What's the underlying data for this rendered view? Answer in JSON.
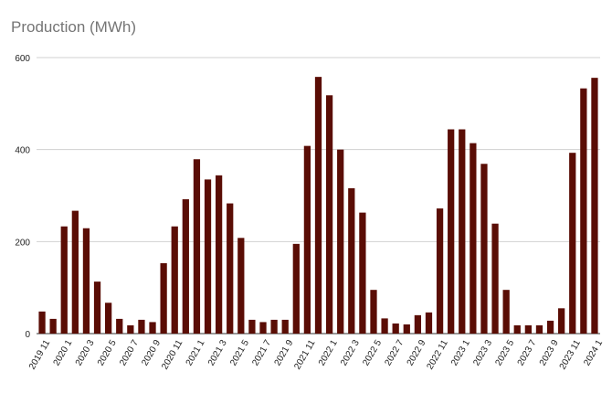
{
  "chart_data": {
    "type": "bar",
    "title": "Production (MWh)",
    "xlabel": "",
    "ylabel": "",
    "ylim": [
      0,
      600
    ],
    "yticks": [
      0,
      200,
      400,
      600
    ],
    "grid": true,
    "color": "#5a0d05",
    "categories": [
      "2019 11",
      "2019 12",
      "2020 1",
      "2020 2",
      "2020 3",
      "2020 4",
      "2020 5",
      "2020 6",
      "2020 7",
      "2020 8",
      "2020 9",
      "2020 10",
      "2020 11",
      "2020 12",
      "2021 1",
      "2021 2",
      "2021 3",
      "2021 4",
      "2021 5",
      "2021 6",
      "2021 7",
      "2021 8",
      "2021 9",
      "2021 10",
      "2021 11",
      "2021 12",
      "2022 1",
      "2022 2",
      "2022 3",
      "2022 4",
      "2022 5",
      "2022 6",
      "2022 7",
      "2022 8",
      "2022 9",
      "2022 10",
      "2022 11",
      "2022 12",
      "2023 1",
      "2023 2",
      "2023 3",
      "2023 4",
      "2023 5",
      "2023 6",
      "2023 7",
      "2023 8",
      "2023 9",
      "2023 10",
      "2023 11",
      "2023 12",
      "2024 1"
    ],
    "xtick_labels": [
      "2019 11",
      "",
      "2020 1",
      "",
      "2020 3",
      "",
      "2020 5",
      "",
      "2020 7",
      "",
      "2020 9",
      "",
      "2020 11",
      "",
      "2021 1",
      "",
      "2021 3",
      "",
      "2021 5",
      "",
      "2021 7",
      "",
      "2021 9",
      "",
      "2021 11",
      "",
      "2022 1",
      "",
      "2022 3",
      "",
      "2022 5",
      "",
      "2022 7",
      "",
      "2022 9",
      "",
      "2022 11",
      "",
      "2023 1",
      "",
      "2023 3",
      "",
      "2023 5",
      "",
      "2023 7",
      "",
      "2023 9",
      "",
      "2023 11",
      "",
      "2024 1"
    ],
    "values": [
      48,
      32,
      233,
      267,
      229,
      113,
      67,
      32,
      18,
      30,
      25,
      153,
      233,
      292,
      379,
      335,
      344,
      283,
      208,
      30,
      25,
      30,
      30,
      195,
      408,
      558,
      518,
      400,
      316,
      263,
      95,
      33,
      22,
      20,
      40,
      46,
      272,
      444,
      444,
      414,
      369,
      239,
      95,
      18,
      18,
      18,
      28,
      55,
      393,
      533,
      556
    ]
  }
}
